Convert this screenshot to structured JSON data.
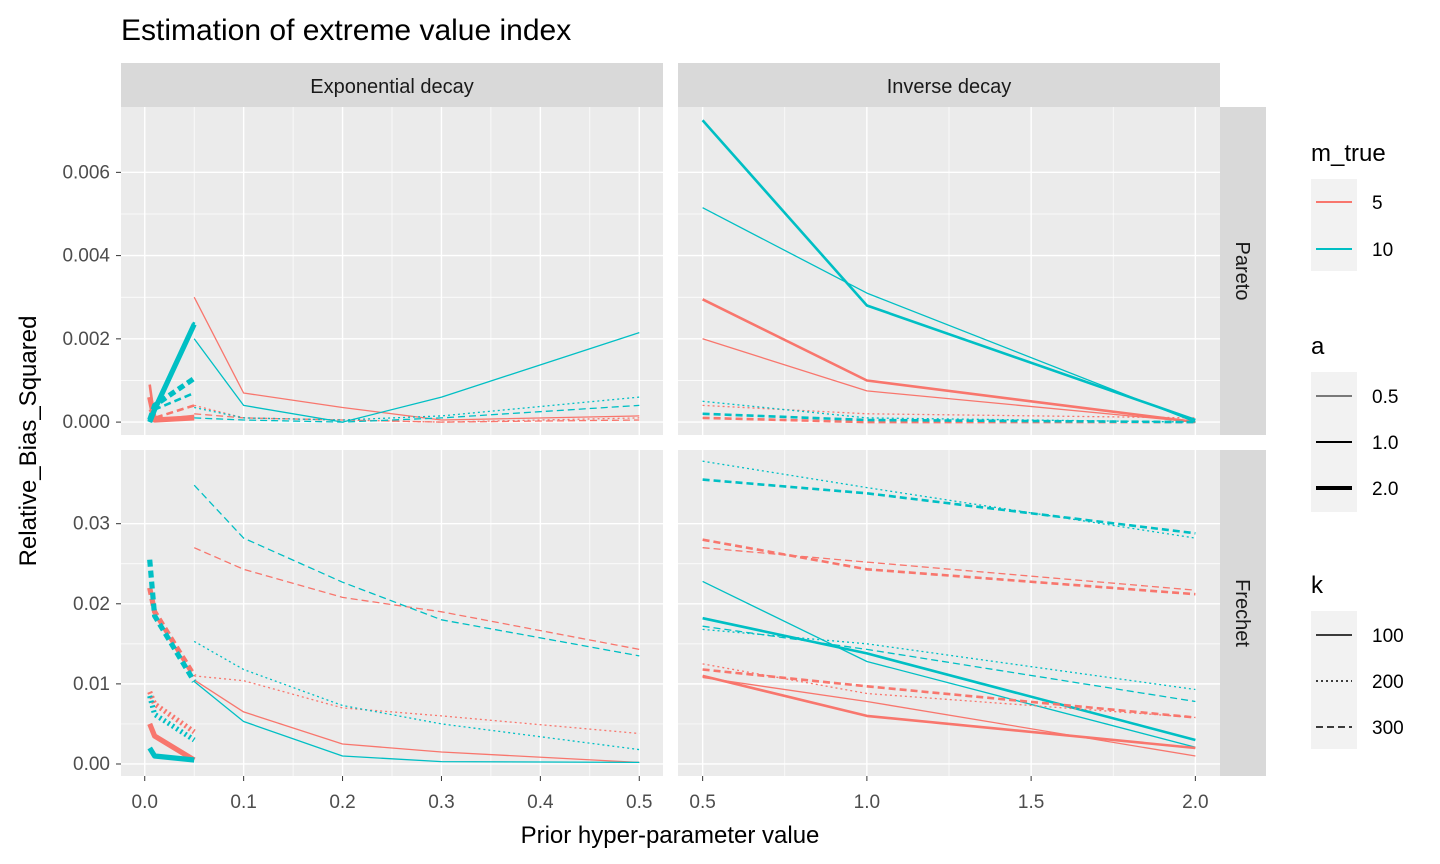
{
  "chart_data": {
    "type": "line",
    "title": "Estimation of extreme value index",
    "xlabel": "Prior hyper-parameter value",
    "ylabel": "Relative_Bias_Squared",
    "facet_cols": [
      "Exponential decay",
      "Inverse decay"
    ],
    "facet_rows": [
      "Pareto",
      "Frechet"
    ],
    "x_ticks": {
      "Exponential decay": [
        "0.0",
        "0.1",
        "0.2",
        "0.3",
        "0.4",
        "0.5"
      ],
      "Inverse decay": [
        "0.5",
        "1.0",
        "1.5",
        "2.0"
      ]
    },
    "y_ticks": {
      "Pareto": [
        "0.000",
        "0.002",
        "0.004",
        "0.006"
      ],
      "Frechet": [
        "0.00",
        "0.01",
        "0.02",
        "0.03"
      ]
    },
    "xlim": {
      "Exponential decay": [
        -0.024,
        0.524
      ],
      "Inverse decay": [
        0.425,
        2.075
      ]
    },
    "ylim": {
      "Pareto": [
        -0.00031,
        0.00757
      ],
      "Frechet": [
        -0.0015,
        0.0392
      ]
    },
    "legends": {
      "m_true": {
        "title": "m_true",
        "items": [
          {
            "label": "5",
            "color": "#F8766D"
          },
          {
            "label": "10",
            "color": "#00BFC4"
          }
        ]
      },
      "a": {
        "title": "a",
        "items": [
          {
            "label": "0.5",
            "width": 1
          },
          {
            "label": "1.0",
            "width": 2
          },
          {
            "label": "2.0",
            "width": 4
          }
        ]
      },
      "k": {
        "title": "k",
        "items": [
          {
            "label": "100",
            "linetype": "solid"
          },
          {
            "label": "200",
            "linetype": "dotted"
          },
          {
            "label": "300",
            "linetype": "dashed"
          }
        ]
      }
    },
    "series": [
      {
        "panel": "Exponential decay|Pareto",
        "m_true": "5",
        "a": "0.5",
        "k": "100",
        "x": [
          0.05,
          0.1,
          0.2,
          0.3,
          0.5
        ],
        "y": [
          0.003,
          0.0007,
          0.00035,
          5e-05,
          0.00015
        ]
      },
      {
        "panel": "Exponential decay|Pareto",
        "m_true": "5",
        "a": "1.0",
        "k": "100",
        "x": [
          0.005,
          0.01,
          0.05
        ],
        "y": [
          0.0009,
          5e-05,
          0.00015
        ]
      },
      {
        "panel": "Exponential decay|Pareto",
        "m_true": "5",
        "a": "2.0",
        "k": "100",
        "x": [
          0.005,
          0.01,
          0.05
        ],
        "y": [
          0.0006,
          5e-05,
          0.0001
        ]
      },
      {
        "panel": "Exponential decay|Pareto",
        "m_true": "5",
        "a": "0.5",
        "k": "200",
        "x": [
          0.05,
          0.1,
          0.2,
          0.3,
          0.5
        ],
        "y": [
          0.0004,
          0.0001,
          5e-05,
          0.0,
          0.0001
        ]
      },
      {
        "panel": "Exponential decay|Pareto",
        "m_true": "5",
        "a": "1.0",
        "k": "300",
        "x": [
          0.005,
          0.01,
          0.05
        ],
        "y": [
          0.0003,
          0.0001,
          0.0004
        ]
      },
      {
        "panel": "Exponential decay|Pareto",
        "m_true": "5",
        "a": "0.5",
        "k": "300",
        "x": [
          0.05,
          0.1,
          0.2,
          0.3,
          0.5
        ],
        "y": [
          0.0002,
          0.0001,
          5e-05,
          0.0,
          5e-05
        ]
      },
      {
        "panel": "Exponential decay|Pareto",
        "m_true": "10",
        "a": "0.5",
        "k": "100",
        "x": [
          0.05,
          0.1,
          0.2,
          0.3,
          0.5
        ],
        "y": [
          0.002,
          0.0004,
          0.0,
          0.0006,
          0.00215
        ]
      },
      {
        "panel": "Exponential decay|Pareto",
        "m_true": "10",
        "a": "1.0",
        "k": "100",
        "x": [
          0.005,
          0.01,
          0.05
        ],
        "y": [
          0.0,
          0.0003,
          0.0024
        ]
      },
      {
        "panel": "Exponential decay|Pareto",
        "m_true": "10",
        "a": "2.0",
        "k": "100",
        "x": [
          0.005,
          0.01,
          0.05
        ],
        "y": [
          0.0,
          0.0003,
          0.00235
        ]
      },
      {
        "panel": "Exponential decay|Pareto",
        "m_true": "10",
        "a": "0.5",
        "k": "200",
        "x": [
          0.05,
          0.1,
          0.2,
          0.3,
          0.5
        ],
        "y": [
          0.00035,
          0.0001,
          5e-05,
          0.00015,
          0.0006
        ]
      },
      {
        "panel": "Exponential decay|Pareto",
        "m_true": "10",
        "a": "2.0",
        "k": "300",
        "x": [
          0.005,
          0.01,
          0.05
        ],
        "y": [
          5e-05,
          0.0004,
          0.00105
        ]
      },
      {
        "panel": "Exponential decay|Pareto",
        "m_true": "10",
        "a": "1.0",
        "k": "300",
        "x": [
          0.005,
          0.01,
          0.05
        ],
        "y": [
          5e-05,
          0.0003,
          0.0007
        ]
      },
      {
        "panel": "Exponential decay|Pareto",
        "m_true": "10",
        "a": "0.5",
        "k": "300",
        "x": [
          0.05,
          0.1,
          0.2,
          0.3,
          0.5
        ],
        "y": [
          0.0001,
          5e-05,
          0.0,
          0.0001,
          0.0004
        ]
      },
      {
        "panel": "Inverse decay|Pareto",
        "m_true": "5",
        "a": "1.0",
        "k": "100",
        "x": [
          0.5,
          1.0,
          2.0
        ],
        "y": [
          0.00295,
          0.001,
          0.0
        ]
      },
      {
        "panel": "Inverse decay|Pareto",
        "m_true": "5",
        "a": "0.5",
        "k": "100",
        "x": [
          0.5,
          1.0,
          2.0
        ],
        "y": [
          0.002,
          0.00075,
          0.0
        ]
      },
      {
        "panel": "Inverse decay|Pareto",
        "m_true": "5",
        "a": "0.5",
        "k": "200",
        "x": [
          0.5,
          1.0,
          2.0
        ],
        "y": [
          0.0004,
          0.0002,
          0.0001
        ]
      },
      {
        "panel": "Inverse decay|Pareto",
        "m_true": "5",
        "a": "1.0",
        "k": "300",
        "x": [
          0.5,
          1.0,
          2.0
        ],
        "y": [
          0.0001,
          0.0,
          0.0
        ]
      },
      {
        "panel": "Inverse decay|Pareto",
        "m_true": "10",
        "a": "1.0",
        "k": "100",
        "x": [
          0.5,
          1.0,
          2.0
        ],
        "y": [
          0.00725,
          0.0028,
          5e-05
        ]
      },
      {
        "panel": "Inverse decay|Pareto",
        "m_true": "10",
        "a": "0.5",
        "k": "100",
        "x": [
          0.5,
          1.0,
          2.0
        ],
        "y": [
          0.00515,
          0.0031,
          0.0
        ]
      },
      {
        "panel": "Inverse decay|Pareto",
        "m_true": "10",
        "a": "0.5",
        "k": "200",
        "x": [
          0.5,
          1.0,
          2.0
        ],
        "y": [
          0.0005,
          0.0001,
          0.0
        ]
      },
      {
        "panel": "Inverse decay|Pareto",
        "m_true": "10",
        "a": "1.0",
        "k": "300",
        "x": [
          0.5,
          1.0,
          2.0
        ],
        "y": [
          0.0002,
          5e-05,
          0.0
        ]
      },
      {
        "panel": "Exponential decay|Frechet",
        "m_true": "5",
        "a": "0.5",
        "k": "300",
        "x": [
          0.05,
          0.1,
          0.2,
          0.3,
          0.5
        ],
        "y": [
          0.027,
          0.0243,
          0.0208,
          0.019,
          0.0143
        ]
      },
      {
        "panel": "Exponential decay|Frechet",
        "m_true": "5",
        "a": "0.5",
        "k": "200",
        "x": [
          0.05,
          0.1,
          0.2,
          0.3,
          0.5
        ],
        "y": [
          0.011,
          0.0104,
          0.007,
          0.006,
          0.0038
        ]
      },
      {
        "panel": "Exponential decay|Frechet",
        "m_true": "5",
        "a": "0.5",
        "k": "100",
        "x": [
          0.05,
          0.1,
          0.2,
          0.3,
          0.5
        ],
        "y": [
          0.0105,
          0.0065,
          0.0025,
          0.0015,
          0.0002
        ]
      },
      {
        "panel": "Exponential decay|Frechet",
        "m_true": "10",
        "a": "0.5",
        "k": "300",
        "x": [
          0.05,
          0.1,
          0.2,
          0.3,
          0.5
        ],
        "y": [
          0.0348,
          0.0282,
          0.0227,
          0.018,
          0.0135
        ]
      },
      {
        "panel": "Exponential decay|Frechet",
        "m_true": "10",
        "a": "0.5",
        "k": "200",
        "x": [
          0.05,
          0.1,
          0.2,
          0.3,
          0.5
        ],
        "y": [
          0.0153,
          0.0118,
          0.0073,
          0.005,
          0.0018
        ]
      },
      {
        "panel": "Exponential decay|Frechet",
        "m_true": "10",
        "a": "0.5",
        "k": "100",
        "x": [
          0.05,
          0.1,
          0.2,
          0.3,
          0.5
        ],
        "y": [
          0.0103,
          0.0053,
          0.001,
          0.0003,
          0.0002
        ]
      },
      {
        "panel": "Exponential decay|Frechet",
        "m_true": "5",
        "a": "2.0",
        "k": "300",
        "x": [
          0.005,
          0.01,
          0.05
        ],
        "y": [
          0.022,
          0.019,
          0.011
        ]
      },
      {
        "panel": "Exponential decay|Frechet",
        "m_true": "5",
        "a": "2.0",
        "k": "200",
        "x": [
          0.005,
          0.01,
          0.05
        ],
        "y": [
          0.009,
          0.0075,
          0.004
        ]
      },
      {
        "panel": "Exponential decay|Frechet",
        "m_true": "5",
        "a": "2.0",
        "k": "100",
        "x": [
          0.005,
          0.01,
          0.05
        ],
        "y": [
          0.005,
          0.0035,
          0.0005
        ]
      },
      {
        "panel": "Exponential decay|Frechet",
        "m_true": "10",
        "a": "2.0",
        "k": "300",
        "x": [
          0.005,
          0.01,
          0.05
        ],
        "y": [
          0.0255,
          0.0185,
          0.0103
        ]
      },
      {
        "panel": "Exponential decay|Frechet",
        "m_true": "10",
        "a": "2.0",
        "k": "200",
        "x": [
          0.005,
          0.01,
          0.05
        ],
        "y": [
          0.0085,
          0.0062,
          0.003
        ]
      },
      {
        "panel": "Exponential decay|Frechet",
        "m_true": "10",
        "a": "2.0",
        "k": "100",
        "x": [
          0.005,
          0.01,
          0.05
        ],
        "y": [
          0.002,
          0.001,
          0.0005
        ]
      },
      {
        "panel": "Inverse decay|Frechet",
        "m_true": "10",
        "a": "0.5",
        "k": "200",
        "x": [
          0.5,
          1.0,
          2.0
        ],
        "y": [
          0.0378,
          0.0345,
          0.0282
        ]
      },
      {
        "panel": "Inverse decay|Frechet",
        "m_true": "10",
        "a": "1.0",
        "k": "300",
        "x": [
          0.5,
          1.0,
          2.0
        ],
        "y": [
          0.0355,
          0.0338,
          0.0288
        ]
      },
      {
        "panel": "Inverse decay|Frechet",
        "m_true": "5",
        "a": "1.0",
        "k": "300",
        "x": [
          0.5,
          1.0,
          2.0
        ],
        "y": [
          0.028,
          0.0243,
          0.0212
        ]
      },
      {
        "panel": "Inverse decay|Frechet",
        "m_true": "5",
        "a": "0.5",
        "k": "300",
        "x": [
          0.5,
          1.0,
          2.0
        ],
        "y": [
          0.027,
          0.0252,
          0.0217
        ]
      },
      {
        "panel": "Inverse decay|Frechet",
        "m_true": "10",
        "a": "0.5",
        "k": "100",
        "x": [
          0.5,
          1.0,
          2.0
        ],
        "y": [
          0.0228,
          0.0128,
          0.0021
        ]
      },
      {
        "panel": "Inverse decay|Frechet",
        "m_true": "10",
        "a": "1.0",
        "k": "100",
        "x": [
          0.5,
          1.0,
          2.0
        ],
        "y": [
          0.0182,
          0.0138,
          0.003
        ]
      },
      {
        "panel": "Inverse decay|Frechet",
        "m_true": "10",
        "a": "0.5",
        "k": "300",
        "x": [
          0.5,
          1.0,
          2.0
        ],
        "y": [
          0.0172,
          0.0143,
          0.0078
        ]
      },
      {
        "panel": "Inverse decay|Frechet",
        "m_true": "10",
        "a": "0.5",
        "k": "200",
        "x": [
          0.5,
          1.0,
          2.0
        ],
        "y": [
          0.0168,
          0.015,
          0.0093
        ]
      },
      {
        "panel": "Inverse decay|Frechet",
        "m_true": "5",
        "a": "0.5",
        "k": "200",
        "x": [
          0.5,
          1.0,
          2.0
        ],
        "y": [
          0.0125,
          0.0088,
          0.0058
        ]
      },
      {
        "panel": "Inverse decay|Frechet",
        "m_true": "5",
        "a": "1.0",
        "k": "300",
        "x": [
          0.5,
          1.0,
          2.0
        ],
        "y": [
          0.0118,
          0.0097,
          0.0058
        ]
      },
      {
        "panel": "Inverse decay|Frechet",
        "m_true": "5",
        "a": "1.0",
        "k": "100",
        "x": [
          0.5,
          1.0,
          2.0
        ],
        "y": [
          0.011,
          0.006,
          0.002
        ]
      },
      {
        "panel": "Inverse decay|Frechet",
        "m_true": "5",
        "a": "0.5",
        "k": "100",
        "x": [
          0.5,
          1.0,
          2.0
        ],
        "y": [
          0.0108,
          0.0078,
          0.001
        ]
      }
    ]
  }
}
